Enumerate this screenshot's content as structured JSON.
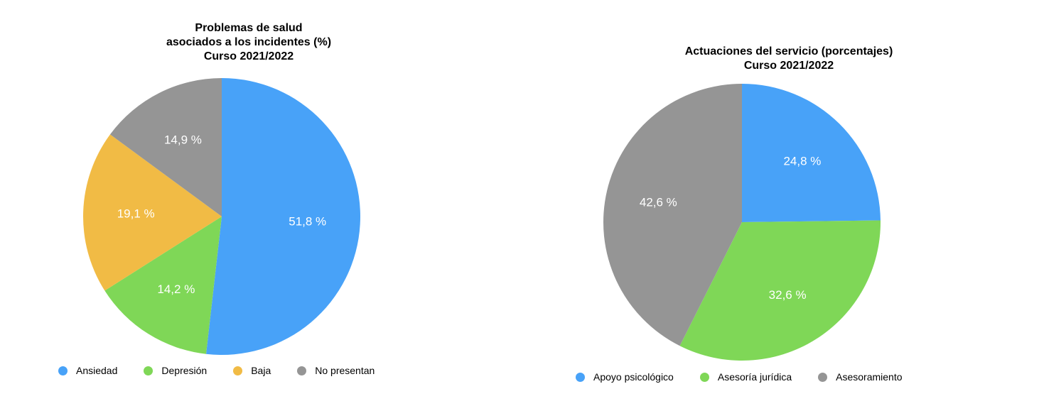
{
  "chart_data": [
    {
      "type": "pie",
      "title": [
        "Problemas de salud",
        "asociados a los incidentes (%)",
        "Curso 2021/2022"
      ],
      "categories": [
        "Ansiedad",
        "Depresión",
        "Baja",
        "No presentan"
      ],
      "values": [
        51.8,
        14.2,
        19.1,
        14.9
      ],
      "value_labels": [
        "51,8 %",
        "14,2 %",
        "19,1 %",
        "14,9 %"
      ],
      "colors": [
        "#48a2f8",
        "#7fd757",
        "#f1bb45",
        "#959595"
      ],
      "legend_position": "bottom"
    },
    {
      "type": "pie",
      "title": [
        "Actuaciones del servicio (porcentajes)",
        "Curso 2021/2022"
      ],
      "categories": [
        "Apoyo psicológico",
        "Asesoría jurídica",
        "Asesoramiento"
      ],
      "values": [
        24.8,
        32.6,
        42.6
      ],
      "value_labels": [
        "24,8 %",
        "32,6 %",
        "42,6 %"
      ],
      "colors": [
        "#48a2f8",
        "#7fd757",
        "#959595"
      ],
      "legend_position": "bottom"
    }
  ]
}
